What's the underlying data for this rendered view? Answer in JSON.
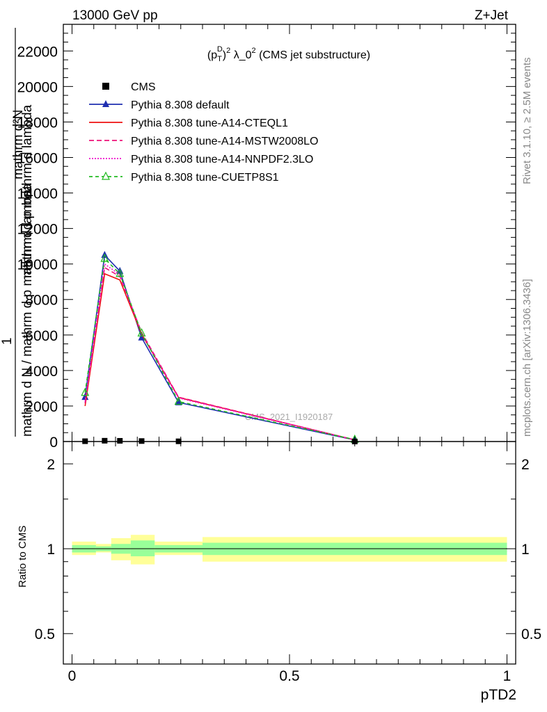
{
  "header": {
    "energy_label": "13000 GeV pp",
    "process_label": "Z+Jet",
    "rivet_label": "Rivet 3.1.10, ≥ 2.5M events",
    "mcplots_label": "mcplots.cern.ch [arXiv:1306.3436]"
  },
  "chart_data": {
    "type": "line",
    "title": "(p_T^D)^2 λ_0^2 (CMS jet substructure)",
    "title_main": "(p",
    "title_sub": "T",
    "title_sup": "D",
    "title_rest": ")",
    "title_sup2": "2",
    "title_tail": " λ_0",
    "title_sup3": "2",
    "title_end": " (CMS jet substructure)",
    "watermark": "CMS_2021_I1920187",
    "xlabel": "pTD2",
    "ylabel_main_lines": [
      "mathrm d²N",
      "1",
      "mathrm d N / mathrm d p mathrm d lambda",
      "mathrm d p mathrm d lambda"
    ],
    "ylabel_ratio": "Ratio to CMS",
    "xlim": [
      -0.02,
      1.02
    ],
    "ylim_main": [
      0,
      23500
    ],
    "ylim_ratio": [
      0.39,
      2.4
    ],
    "x_ticks": [
      0,
      0.5,
      1
    ],
    "x_tick_labels": [
      "0",
      "0.5",
      "1"
    ],
    "y_ticks_main": [
      0,
      2000,
      4000,
      6000,
      8000,
      10000,
      12000,
      14000,
      16000,
      18000,
      20000,
      22000
    ],
    "y_tick_labels_main": [
      "0",
      "2000",
      "4000",
      "6000",
      "8000",
      "10000",
      "12000",
      "14000",
      "16000",
      "18000",
      "20000",
      "22000"
    ],
    "y_ticks_ratio": [
      0.5,
      1,
      2
    ],
    "y_tick_labels_ratio": [
      "0.5",
      "1",
      "2"
    ],
    "bin_edges": [
      0,
      0.055,
      0.09,
      0.135,
      0.19,
      0.3,
      1.0
    ],
    "data": {
      "name": "CMS",
      "x": [
        0.03,
        0.075,
        0.11,
        0.16,
        0.245,
        0.65
      ],
      "y": [
        18,
        45,
        40,
        27,
        12,
        1
      ],
      "color": "#000000"
    },
    "series": [
      {
        "name": "Pythia 8.308 default",
        "x": [
          0.03,
          0.075,
          0.11,
          0.16,
          0.245,
          0.65
        ],
        "y": [
          2500,
          10500,
          9600,
          5850,
          2200,
          90
        ],
        "color": "#1f2fb0",
        "dash": "",
        "marker": "filled-triangle"
      },
      {
        "name": "Pythia 8.308 tune-A14-CTEQL1",
        "x": [
          0.03,
          0.075,
          0.11,
          0.16,
          0.245,
          0.65
        ],
        "y": [
          2000,
          9450,
          9100,
          6050,
          2480,
          95
        ],
        "color": "#ee1111",
        "dash": "",
        "marker": "none"
      },
      {
        "name": "Pythia 8.308 tune-A14-MSTW2008LO",
        "x": [
          0.03,
          0.075,
          0.11,
          0.16,
          0.245,
          0.65
        ],
        "y": [
          2150,
          9800,
          9300,
          6150,
          2500,
          95
        ],
        "color": "#ee1177",
        "dash": "7,4",
        "marker": "none"
      },
      {
        "name": "Pythia 8.308 tune-A14-NNPDF2.3LO",
        "x": [
          0.03,
          0.075,
          0.11,
          0.16,
          0.245,
          0.65
        ],
        "y": [
          2250,
          10000,
          9400,
          6100,
          2450,
          95
        ],
        "color": "#ee11cc",
        "dash": "2,2",
        "marker": "none"
      },
      {
        "name": "Pythia 8.308 tune-CUETP8S1",
        "x": [
          0.03,
          0.075,
          0.11,
          0.16,
          0.245,
          0.65
        ],
        "y": [
          2750,
          10300,
          9450,
          6100,
          2250,
          110
        ],
        "color": "#22bb22",
        "dash": "5,4",
        "marker": "open-triangle"
      }
    ],
    "ratio_bands": {
      "yellow_low": [
        0.95,
        0.97,
        0.91,
        0.88,
        0.95,
        0.9
      ],
      "yellow_high": [
        1.06,
        1.04,
        1.09,
        1.12,
        1.06,
        1.1
      ],
      "green_low": [
        0.97,
        0.98,
        0.96,
        0.94,
        0.97,
        0.95
      ],
      "green_high": [
        1.03,
        1.02,
        1.04,
        1.07,
        1.03,
        1.05
      ],
      "yellow_color": "#ffff99",
      "green_color": "#99ff99"
    }
  }
}
